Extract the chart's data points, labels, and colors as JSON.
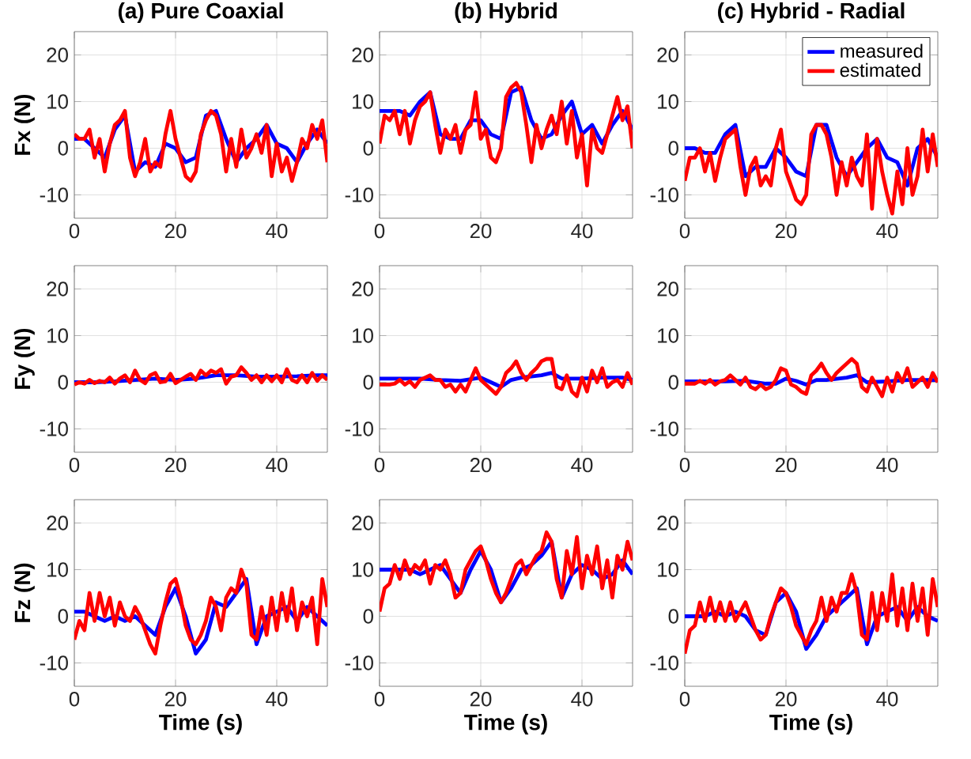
{
  "chart_data": [
    {
      "type": "line",
      "title": "(a) Pure Coaxial",
      "ylabel": "Fx (N)",
      "xlim": [
        0,
        50
      ],
      "ylim": [
        -15,
        25
      ],
      "xticks": [
        0,
        20,
        40
      ],
      "yticks": [
        -10,
        0,
        10,
        20
      ],
      "grid": true,
      "series": [
        {
          "color": "#0000ff",
          "x": [
            0,
            2,
            4,
            6,
            8,
            10,
            12,
            14,
            16,
            18,
            20,
            22,
            24,
            26,
            28,
            30,
            32,
            34,
            36,
            38,
            40,
            42,
            44,
            46,
            48,
            50
          ],
          "values": [
            2,
            2,
            0,
            -2,
            4,
            7,
            -5,
            -3,
            -4,
            1,
            0,
            -3,
            -2,
            7,
            8,
            2,
            -3,
            0,
            2,
            5,
            1,
            0,
            -3,
            1,
            4,
            1
          ]
        },
        {
          "color": "#ff0000",
          "x": [
            0,
            1,
            2,
            3,
            4,
            5,
            6,
            7,
            8,
            9,
            10,
            11,
            12,
            13,
            14,
            15,
            16,
            17,
            18,
            19,
            20,
            21,
            22,
            23,
            24,
            25,
            26,
            27,
            28,
            29,
            30,
            31,
            32,
            33,
            34,
            35,
            36,
            37,
            38,
            39,
            40,
            41,
            42,
            43,
            44,
            45,
            46,
            47,
            48,
            49,
            50
          ],
          "values": [
            3,
            2,
            2,
            4,
            -2,
            2,
            -5,
            1,
            5,
            6,
            8,
            -2,
            -6,
            -3,
            2,
            -5,
            -3,
            -4,
            3,
            8,
            2,
            -2,
            -6,
            -7,
            -5,
            3,
            6,
            8,
            7,
            3,
            -5,
            2,
            -4,
            4,
            -2,
            0,
            3,
            -1,
            5,
            -6,
            1,
            -5,
            -2,
            -7,
            -3,
            2,
            0,
            5,
            2,
            6,
            -3
          ]
        }
      ]
    },
    {
      "type": "line",
      "title": "(b) Hybrid",
      "xlim": [
        0,
        50
      ],
      "ylim": [
        -15,
        25
      ],
      "xticks": [
        0,
        20,
        40
      ],
      "yticks": [
        -10,
        0,
        10,
        20
      ],
      "grid": true,
      "series": [
        {
          "color": "#0000ff",
          "x": [
            0,
            2,
            4,
            6,
            8,
            10,
            12,
            14,
            16,
            18,
            20,
            22,
            24,
            26,
            28,
            30,
            32,
            34,
            36,
            38,
            40,
            42,
            44,
            46,
            48,
            50
          ],
          "values": [
            8,
            8,
            8,
            7,
            10,
            12,
            3,
            2,
            2,
            6,
            6,
            3,
            2,
            12,
            13,
            6,
            2,
            3,
            7,
            10,
            3,
            5,
            1,
            5,
            8,
            4
          ]
        },
        {
          "color": "#ff0000",
          "x": [
            0,
            1,
            2,
            3,
            4,
            5,
            6,
            7,
            8,
            9,
            10,
            11,
            12,
            13,
            14,
            15,
            16,
            17,
            18,
            19,
            20,
            21,
            22,
            23,
            24,
            25,
            26,
            27,
            28,
            29,
            30,
            31,
            32,
            33,
            34,
            35,
            36,
            37,
            38,
            39,
            40,
            41,
            42,
            43,
            44,
            45,
            46,
            47,
            48,
            49,
            50
          ],
          "values": [
            1,
            7,
            6,
            8,
            3,
            8,
            1,
            6,
            9,
            10,
            12,
            5,
            -1,
            4,
            2,
            5,
            -1,
            4,
            5,
            12,
            2,
            4,
            -2,
            -3,
            0,
            11,
            13,
            14,
            12,
            5,
            -3,
            5,
            0,
            4,
            7,
            3,
            10,
            1,
            8,
            -2,
            3,
            -8,
            4,
            0,
            -1,
            3,
            7,
            11,
            6,
            9,
            0
          ]
        }
      ]
    },
    {
      "type": "line",
      "title": "(c) Hybrid - Radial",
      "xlim": [
        0,
        50
      ],
      "ylim": [
        -15,
        25
      ],
      "xticks": [
        0,
        20,
        40
      ],
      "yticks": [
        -10,
        0,
        10,
        20
      ],
      "grid": true,
      "legend": "top right",
      "series": [
        {
          "name": "measured",
          "color": "#0000ff",
          "x": [
            0,
            2,
            4,
            6,
            8,
            10,
            12,
            14,
            16,
            18,
            20,
            22,
            24,
            26,
            28,
            30,
            32,
            34,
            36,
            38,
            40,
            42,
            44,
            46,
            48,
            50
          ],
          "values": [
            0,
            0,
            -1,
            -1,
            3,
            5,
            -6,
            -4,
            -4,
            0,
            -2,
            -5,
            -6,
            5,
            5,
            -2,
            -6,
            -3,
            0,
            2,
            -2,
            -3,
            -8,
            0,
            2,
            -2
          ]
        },
        {
          "name": "estimated",
          "color": "#ff0000",
          "x": [
            0,
            1,
            2,
            3,
            4,
            5,
            6,
            7,
            8,
            9,
            10,
            11,
            12,
            13,
            14,
            15,
            16,
            17,
            18,
            19,
            20,
            21,
            22,
            23,
            24,
            25,
            26,
            27,
            28,
            29,
            30,
            31,
            32,
            33,
            34,
            35,
            36,
            37,
            38,
            39,
            40,
            41,
            42,
            43,
            44,
            45,
            46,
            47,
            48,
            49,
            50
          ],
          "values": [
            -7,
            -2,
            -2,
            0,
            -5,
            -1,
            -7,
            -2,
            2,
            3,
            4,
            -4,
            -10,
            -4,
            -2,
            -8,
            -6,
            -8,
            0,
            4,
            -5,
            -8,
            -11,
            -12,
            -10,
            3,
            5,
            5,
            3,
            -2,
            -10,
            -3,
            -8,
            -2,
            -6,
            -8,
            3,
            -13,
            2,
            -5,
            -10,
            -14,
            -5,
            -12,
            0,
            -10,
            -6,
            4,
            -5,
            3,
            -4
          ]
        }
      ]
    },
    {
      "type": "line",
      "ylabel": "Fy (N)",
      "xlim": [
        0,
        50
      ],
      "ylim": [
        -15,
        25
      ],
      "xticks": [
        0,
        20,
        40
      ],
      "yticks": [
        -10,
        0,
        10,
        20
      ],
      "grid": true,
      "series": [
        {
          "color": "#0000ff",
          "x": [
            0,
            4,
            8,
            12,
            16,
            20,
            24,
            28,
            32,
            36,
            40,
            44,
            48,
            50
          ],
          "values": [
            0,
            0,
            0.2,
            0.5,
            0.8,
            0.5,
            0.8,
            1.5,
            1.5,
            1.2,
            1.2,
            1.3,
            1.5,
            1.5
          ]
        },
        {
          "color": "#ff0000",
          "x": [
            0,
            1,
            2,
            3,
            4,
            5,
            6,
            7,
            8,
            9,
            10,
            11,
            12,
            13,
            14,
            15,
            16,
            17,
            18,
            19,
            20,
            21,
            22,
            23,
            24,
            25,
            26,
            27,
            28,
            29,
            30,
            31,
            32,
            33,
            34,
            35,
            36,
            37,
            38,
            39,
            40,
            41,
            42,
            43,
            44,
            45,
            46,
            47,
            48,
            49,
            50
          ],
          "values": [
            -0.5,
            0,
            -0.3,
            0.5,
            -0.2,
            0.3,
            0,
            1,
            -0.3,
            0.8,
            1.5,
            0,
            2.5,
            0.5,
            -0.2,
            1.5,
            2,
            0,
            0.2,
            1.8,
            -0.2,
            0.5,
            1.2,
            1.8,
            0.5,
            2.5,
            1.5,
            2.5,
            2,
            2.8,
            -0.3,
            1.2,
            1.5,
            3.2,
            2,
            0.5,
            1.5,
            0,
            1.5,
            0.2,
            1.5,
            0,
            2.8,
            0.5,
            0,
            1.5,
            0,
            2,
            0.3,
            1.5,
            0.5
          ]
        }
      ]
    },
    {
      "type": "line",
      "xlim": [
        0,
        50
      ],
      "ylim": [
        -15,
        25
      ],
      "xticks": [
        0,
        20,
        40
      ],
      "yticks": [
        -10,
        0,
        10,
        20
      ],
      "grid": true,
      "series": [
        {
          "color": "#0000ff",
          "x": [
            0,
            4,
            8,
            12,
            16,
            20,
            22,
            24,
            26,
            28,
            32,
            34,
            36,
            40,
            44,
            48,
            50
          ],
          "values": [
            0.8,
            0.8,
            0.8,
            0.5,
            0.3,
            1,
            0,
            -1,
            0.5,
            1,
            1.5,
            2,
            0.8,
            0.8,
            1,
            1,
            0.5
          ]
        },
        {
          "color": "#ff0000",
          "x": [
            0,
            1,
            2,
            3,
            4,
            5,
            6,
            7,
            8,
            9,
            10,
            11,
            12,
            13,
            14,
            15,
            16,
            17,
            18,
            19,
            20,
            21,
            22,
            23,
            24,
            25,
            26,
            27,
            28,
            29,
            30,
            31,
            32,
            33,
            34,
            35,
            36,
            37,
            38,
            39,
            40,
            41,
            42,
            43,
            44,
            45,
            46,
            47,
            48,
            49,
            50
          ],
          "values": [
            -0.5,
            -0.5,
            -0.5,
            -0.3,
            0.5,
            -0.5,
            0.2,
            -1,
            0.5,
            1,
            1.5,
            0.5,
            0.5,
            -1,
            -0.5,
            -2,
            -0.5,
            -2,
            0.5,
            3,
            0.5,
            -0.5,
            -1.5,
            -2.5,
            -1,
            2,
            3,
            4.5,
            2,
            0.5,
            2,
            3,
            4.5,
            5,
            5,
            -1,
            -1.5,
            1.5,
            -2,
            -3,
            1,
            -2,
            2.5,
            0,
            3,
            -1,
            0,
            0.5,
            -1,
            2,
            -0.5
          ]
        }
      ]
    },
    {
      "type": "line",
      "xlim": [
        0,
        50
      ],
      "ylim": [
        -15,
        25
      ],
      "xticks": [
        0,
        20,
        40
      ],
      "yticks": [
        -10,
        0,
        10,
        20
      ],
      "grid": true,
      "series": [
        {
          "color": "#0000ff",
          "x": [
            0,
            4,
            8,
            12,
            16,
            18,
            20,
            22,
            24,
            26,
            28,
            32,
            34,
            36,
            40,
            44,
            48,
            50
          ],
          "values": [
            0.2,
            0.2,
            0.2,
            0.3,
            -0.3,
            -0.3,
            0.8,
            0.3,
            -0.5,
            0.5,
            0.5,
            1,
            1.5,
            0,
            0.2,
            0.5,
            0.5,
            0.5
          ]
        },
        {
          "color": "#ff0000",
          "x": [
            0,
            1,
            2,
            3,
            4,
            5,
            6,
            7,
            8,
            9,
            10,
            11,
            12,
            13,
            14,
            15,
            16,
            17,
            18,
            19,
            20,
            21,
            22,
            23,
            24,
            25,
            26,
            27,
            28,
            29,
            30,
            31,
            32,
            33,
            34,
            35,
            36,
            37,
            38,
            39,
            40,
            41,
            42,
            43,
            44,
            45,
            46,
            47,
            48,
            49,
            50
          ],
          "values": [
            -0.3,
            -0.3,
            -0.3,
            0.3,
            -0.3,
            0.5,
            -0.5,
            0.2,
            0.5,
            1.5,
            0.5,
            -0.5,
            1,
            -1,
            -1.5,
            -0.5,
            -1.5,
            -1,
            0.5,
            3,
            2.5,
            -0.5,
            -1,
            -2,
            -2.5,
            1.5,
            2.5,
            4,
            2,
            0.5,
            2,
            3,
            4,
            5,
            4,
            -1,
            -2,
            1,
            -1,
            -3,
            1,
            -2,
            2,
            0,
            3,
            -1,
            0,
            1,
            -1,
            2,
            0
          ]
        }
      ]
    },
    {
      "type": "line",
      "ylabel": "Fz (N)",
      "xlabel": "Time (s)",
      "xlim": [
        0,
        50
      ],
      "ylim": [
        -15,
        25
      ],
      "xticks": [
        0,
        20,
        40
      ],
      "yticks": [
        -10,
        0,
        10,
        20
      ],
      "grid": true,
      "series": [
        {
          "color": "#0000ff",
          "x": [
            0,
            2,
            4,
            6,
            8,
            10,
            12,
            14,
            16,
            18,
            20,
            22,
            24,
            26,
            28,
            30,
            32,
            34,
            36,
            38,
            40,
            42,
            44,
            46,
            48,
            50
          ],
          "values": [
            1,
            1,
            0,
            -1,
            0,
            -1,
            0,
            -2,
            -4,
            2,
            6,
            0,
            -8,
            -5,
            3,
            2,
            5,
            8,
            -6,
            0,
            1,
            2,
            -1,
            2,
            0,
            -2
          ]
        },
        {
          "color": "#ff0000",
          "x": [
            0,
            1,
            2,
            3,
            4,
            5,
            6,
            7,
            8,
            9,
            10,
            11,
            12,
            13,
            14,
            15,
            16,
            17,
            18,
            19,
            20,
            21,
            22,
            23,
            24,
            25,
            26,
            27,
            28,
            29,
            30,
            31,
            32,
            33,
            34,
            35,
            36,
            37,
            38,
            39,
            40,
            41,
            42,
            43,
            44,
            45,
            46,
            47,
            48,
            49,
            50
          ],
          "values": [
            -5,
            -1,
            -3,
            5,
            -1,
            5,
            0,
            4,
            -2,
            3,
            0,
            -1,
            2,
            0,
            -3,
            -6,
            -8,
            -2,
            3,
            7,
            8,
            4,
            -2,
            -5,
            -6,
            -4,
            -1,
            4,
            2,
            -3,
            4,
            6,
            5,
            10,
            7,
            -4,
            -5,
            2,
            -4,
            4,
            -3,
            5,
            -1,
            6,
            -3,
            3,
            0,
            4,
            -6,
            8,
            2
          ]
        }
      ]
    },
    {
      "type": "line",
      "xlabel": "Time (s)",
      "xlim": [
        0,
        50
      ],
      "ylim": [
        -15,
        25
      ],
      "xticks": [
        0,
        20,
        40
      ],
      "yticks": [
        -10,
        0,
        10,
        20
      ],
      "grid": true,
      "series": [
        {
          "color": "#0000ff",
          "x": [
            0,
            2,
            4,
            6,
            8,
            10,
            12,
            14,
            16,
            18,
            20,
            22,
            24,
            26,
            28,
            30,
            32,
            34,
            36,
            38,
            40,
            42,
            44,
            46,
            48,
            50
          ],
          "values": [
            10,
            10,
            10,
            10,
            9,
            10,
            11,
            8,
            5,
            10,
            14,
            10,
            3,
            6,
            10,
            11,
            13,
            16,
            4,
            9,
            11,
            10,
            8,
            9,
            12,
            9
          ]
        },
        {
          "color": "#ff0000",
          "x": [
            0,
            1,
            2,
            3,
            4,
            5,
            6,
            7,
            8,
            9,
            10,
            11,
            12,
            13,
            14,
            15,
            16,
            17,
            18,
            19,
            20,
            21,
            22,
            23,
            24,
            25,
            26,
            27,
            28,
            29,
            30,
            31,
            32,
            33,
            34,
            35,
            36,
            37,
            38,
            39,
            40,
            41,
            42,
            43,
            44,
            45,
            46,
            47,
            48,
            49,
            50
          ],
          "values": [
            1,
            6,
            7,
            11,
            8,
            12,
            9,
            11,
            10,
            12,
            7,
            11,
            10,
            12,
            9,
            4,
            5,
            10,
            12,
            14,
            15,
            12,
            8,
            5,
            3,
            5,
            8,
            11,
            12,
            9,
            11,
            13,
            14,
            18,
            16,
            8,
            4,
            14,
            9,
            17,
            6,
            13,
            9,
            15,
            6,
            12,
            4,
            13,
            10,
            16,
            12
          ]
        }
      ]
    },
    {
      "type": "line",
      "xlabel": "Time (s)",
      "xlim": [
        0,
        50
      ],
      "ylim": [
        -15,
        25
      ],
      "xticks": [
        0,
        20,
        40
      ],
      "yticks": [
        -10,
        0,
        10,
        20
      ],
      "grid": true,
      "series": [
        {
          "color": "#0000ff",
          "x": [
            0,
            2,
            4,
            6,
            8,
            10,
            12,
            14,
            16,
            18,
            20,
            22,
            24,
            26,
            28,
            30,
            32,
            34,
            36,
            38,
            40,
            42,
            44,
            46,
            48,
            50
          ],
          "values": [
            0,
            0,
            0,
            1,
            0,
            1,
            0,
            -3,
            -4,
            3,
            5,
            1,
            -7,
            -4,
            0,
            2,
            4,
            6,
            -6,
            0,
            1,
            2,
            -1,
            2,
            0,
            -1
          ]
        },
        {
          "color": "#ff0000",
          "x": [
            0,
            1,
            2,
            3,
            4,
            5,
            6,
            7,
            8,
            9,
            10,
            11,
            12,
            13,
            14,
            15,
            16,
            17,
            18,
            19,
            20,
            21,
            22,
            23,
            24,
            25,
            26,
            27,
            28,
            29,
            30,
            31,
            32,
            33,
            34,
            35,
            36,
            37,
            38,
            39,
            40,
            41,
            42,
            43,
            44,
            45,
            46,
            47,
            48,
            49,
            50
          ],
          "values": [
            -8,
            -3,
            -2,
            3,
            -1,
            4,
            -1,
            3,
            -1,
            3,
            -1,
            1,
            3,
            0,
            -3,
            -5,
            -4,
            0,
            3,
            6,
            5,
            2,
            -2,
            -4,
            -6,
            -3,
            -1,
            4,
            -1,
            4,
            1,
            5,
            5,
            9,
            5,
            -4,
            -5,
            5,
            -3,
            5,
            -1,
            9,
            -2,
            6,
            -3,
            7,
            -1,
            6,
            -4,
            8,
            2
          ]
        }
      ]
    }
  ]
}
